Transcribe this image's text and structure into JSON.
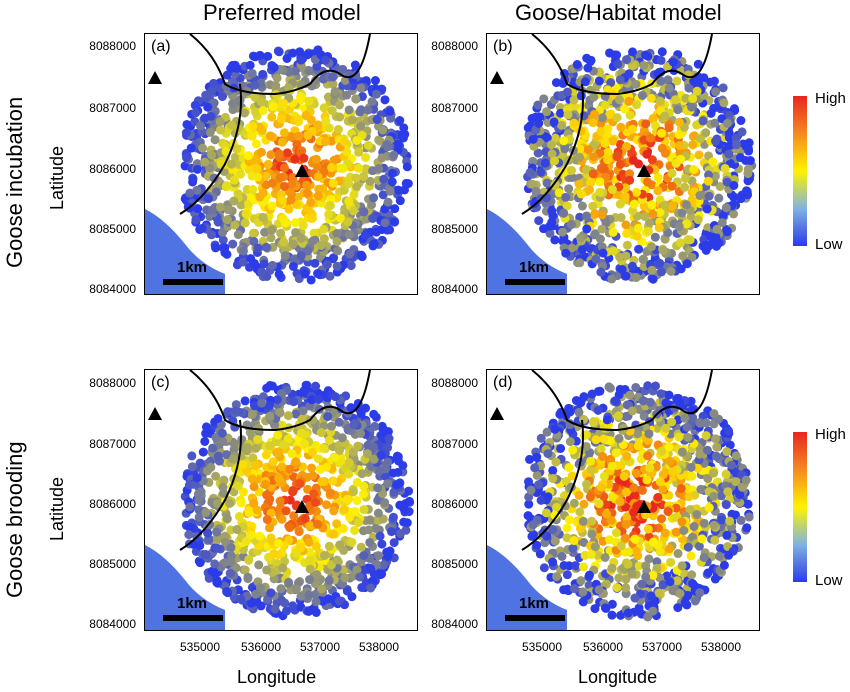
{
  "columns": {
    "left": "Preferred model",
    "right": "Goose/Habitat model"
  },
  "rows": {
    "top": "Goose incubation",
    "bottom": "Goose brooding"
  },
  "axes": {
    "ylabel": "Latitude",
    "xlabel": "Longitude",
    "yticks": [
      "8088000",
      "8087000",
      "8086000",
      "8085000",
      "8084000"
    ],
    "xticks": [
      "535000",
      "536000",
      "537000",
      "538000"
    ]
  },
  "panels": [
    {
      "label": "(a)",
      "model": "preferred",
      "season": "incubation"
    },
    {
      "label": "(b)",
      "model": "goose-habitat",
      "season": "incubation"
    },
    {
      "label": "(c)",
      "model": "preferred",
      "season": "brooding"
    },
    {
      "label": "(d)",
      "model": "goose-habitat",
      "season": "brooding"
    }
  ],
  "scalebar": {
    "label": "1km"
  },
  "legend": {
    "high": "High",
    "low": "Low"
  },
  "colors": {
    "high": "#e8261e",
    "mid": "#fff200",
    "low": "#2b3be8",
    "water": "#4f73e3"
  }
}
